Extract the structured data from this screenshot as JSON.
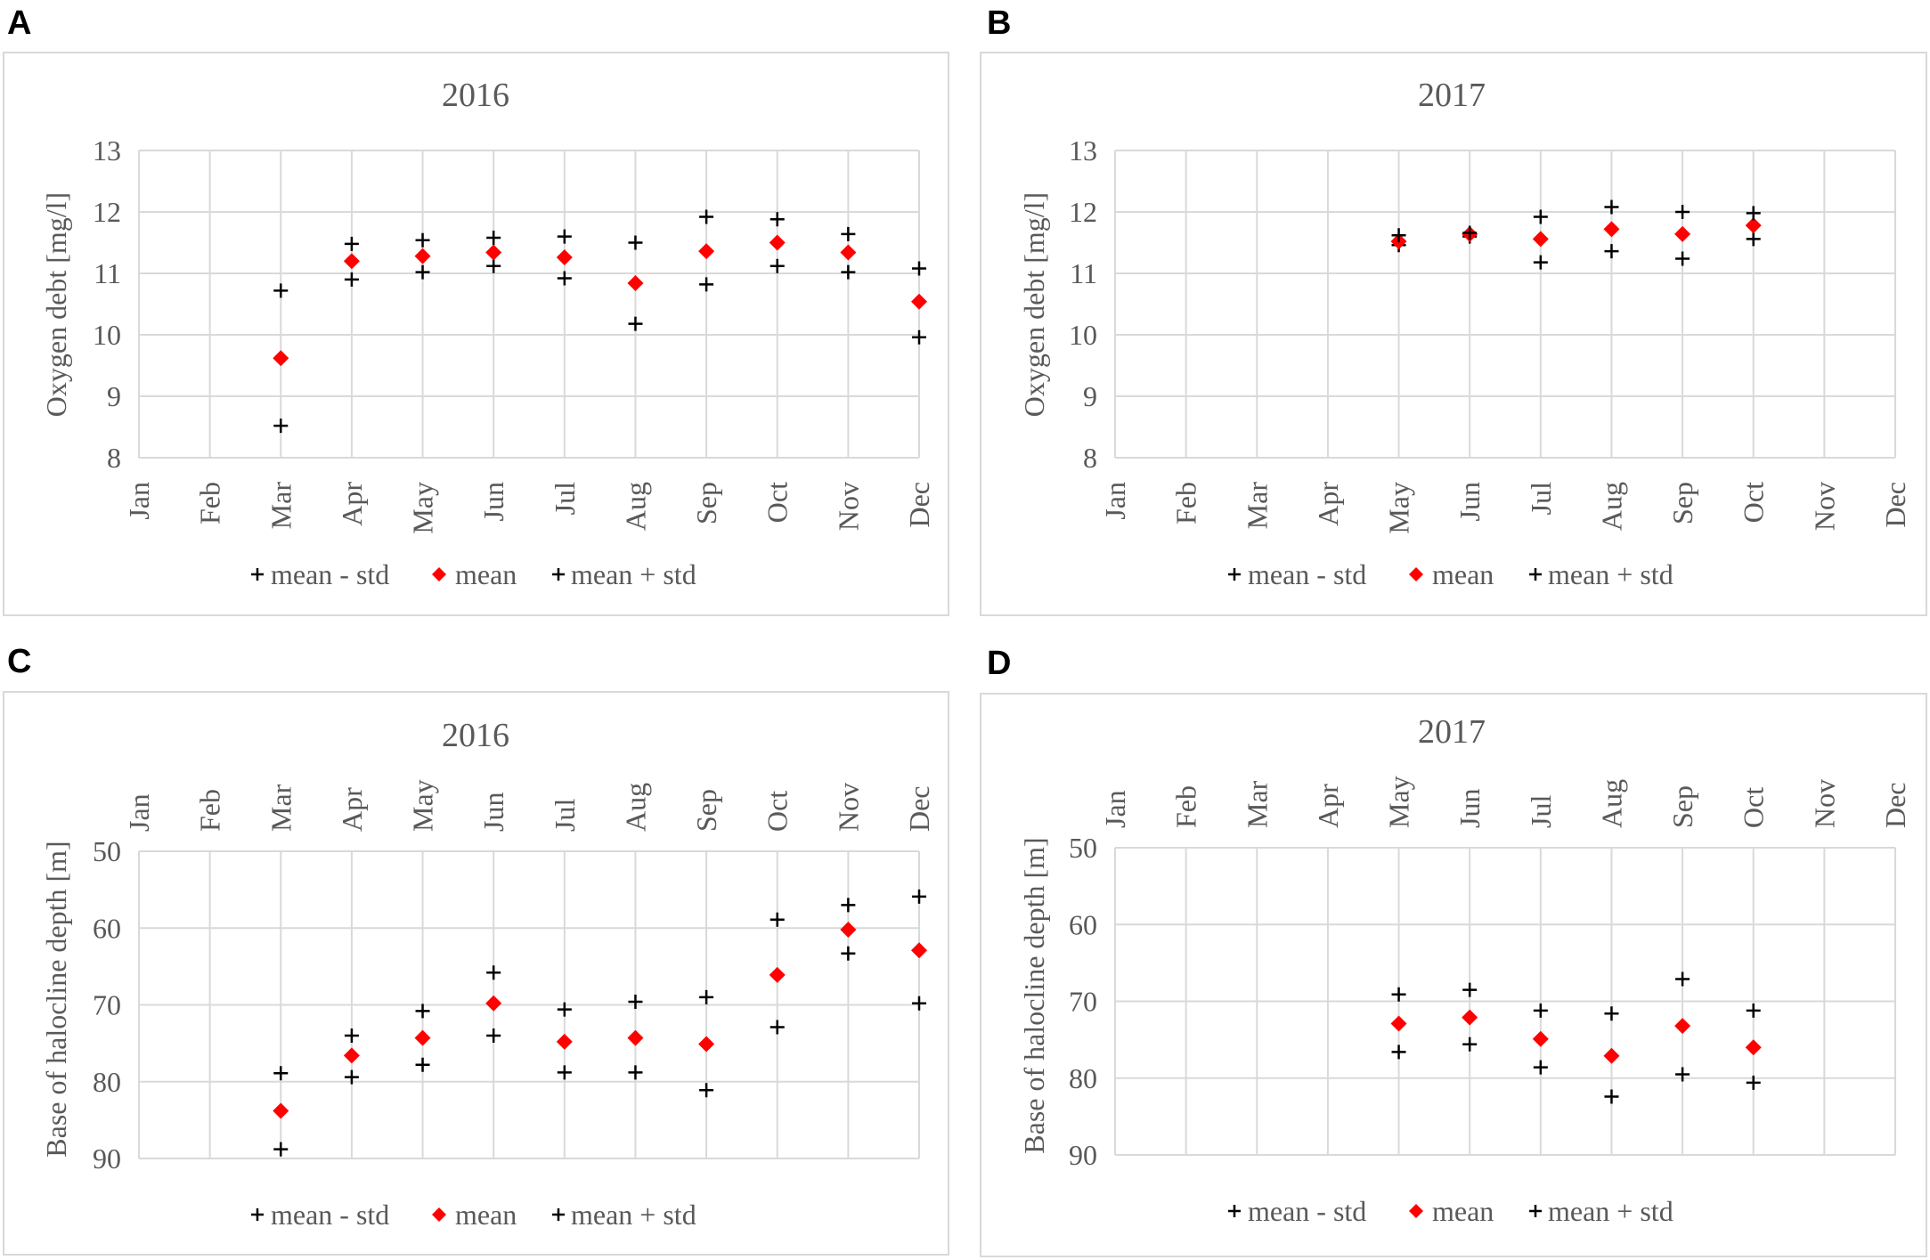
{
  "colors": {
    "mean": "#ff0000",
    "std": "#000000",
    "grid": "#d9d9d9",
    "text": "#595959"
  },
  "chart_data": [
    {
      "panel": "A",
      "type": "scatter",
      "title": "2016",
      "ylabel": "Oxygen debt [mg/l]",
      "xlabel": "",
      "categories": [
        "Jan",
        "Feb",
        "Mar",
        "Apr",
        "May",
        "Jun",
        "Jul",
        "Aug",
        "Sep",
        "Oct",
        "Nov",
        "Dec"
      ],
      "ylim": [
        8,
        13
      ],
      "yticks": [
        8,
        9,
        10,
        11,
        12,
        13
      ],
      "reversed": false,
      "month_axis": "bottom",
      "legend_labels": [
        "mean - std",
        "mean",
        "mean + std"
      ],
      "series": [
        {
          "name": "mean - std",
          "marker": "plus",
          "values": [
            null,
            null,
            8.52,
            10.9,
            11.02,
            11.12,
            10.92,
            10.18,
            10.82,
            11.12,
            11.02,
            9.96
          ]
        },
        {
          "name": "mean",
          "marker": "diamond",
          "values": [
            null,
            null,
            9.62,
            11.2,
            11.28,
            11.34,
            11.26,
            10.84,
            11.36,
            11.5,
            11.34,
            10.54
          ]
        },
        {
          "name": "mean + std",
          "marker": "plus",
          "values": [
            null,
            null,
            10.72,
            11.48,
            11.54,
            11.58,
            11.6,
            11.5,
            11.92,
            11.88,
            11.64,
            11.08
          ]
        }
      ]
    },
    {
      "panel": "B",
      "type": "scatter",
      "title": "2017",
      "ylabel": "Oxygen debt [mg/l]",
      "xlabel": "",
      "categories": [
        "Jan",
        "Feb",
        "Mar",
        "Apr",
        "May",
        "Jun",
        "Jul",
        "Aug",
        "Sep",
        "Oct",
        "Nov",
        "Dec"
      ],
      "ylim": [
        8,
        13
      ],
      "yticks": [
        8,
        9,
        10,
        11,
        12,
        13
      ],
      "reversed": false,
      "month_axis": "bottom",
      "legend_labels": [
        "mean - std",
        "mean",
        "mean + std"
      ],
      "series": [
        {
          "name": "mean - std",
          "marker": "plus",
          "values": [
            null,
            null,
            null,
            null,
            11.46,
            11.6,
            11.18,
            11.36,
            11.24,
            11.56,
            null,
            null
          ]
        },
        {
          "name": "mean",
          "marker": "diamond",
          "values": [
            null,
            null,
            null,
            null,
            11.52,
            11.64,
            11.56,
            11.72,
            11.64,
            11.78,
            null,
            null
          ]
        },
        {
          "name": "mean + std",
          "marker": "plus",
          "values": [
            null,
            null,
            null,
            null,
            11.62,
            11.66,
            11.92,
            12.08,
            12.0,
            11.98,
            null,
            null
          ]
        }
      ]
    },
    {
      "panel": "C",
      "type": "scatter",
      "title": "2016",
      "ylabel": "Base of halocline depth [m]",
      "xlabel": "",
      "categories": [
        "Jan",
        "Feb",
        "Mar",
        "Apr",
        "May",
        "Jun",
        "Jul",
        "Aug",
        "Sep",
        "Oct",
        "Nov",
        "Dec"
      ],
      "ylim": [
        50,
        90
      ],
      "yticks": [
        50,
        60,
        70,
        80,
        90
      ],
      "reversed": true,
      "month_axis": "top",
      "legend_labels": [
        "mean - std",
        "mean",
        "mean + std"
      ],
      "series": [
        {
          "name": "mean - std",
          "marker": "plus",
          "values": [
            null,
            null,
            78.9,
            74.0,
            70.8,
            65.8,
            70.6,
            69.6,
            69.0,
            58.9,
            57.0,
            55.9
          ]
        },
        {
          "name": "mean",
          "marker": "diamond",
          "values": [
            null,
            null,
            83.8,
            76.6,
            74.3,
            69.8,
            74.8,
            74.3,
            75.1,
            66.1,
            60.2,
            62.9
          ]
        },
        {
          "name": "mean + std",
          "marker": "plus",
          "values": [
            null,
            null,
            88.8,
            79.4,
            77.8,
            74.0,
            78.8,
            78.8,
            81.1,
            72.9,
            63.3,
            69.8
          ]
        }
      ]
    },
    {
      "panel": "D",
      "type": "scatter",
      "title": "2017",
      "ylabel": "Base of halocline depth [m]",
      "xlabel": "",
      "categories": [
        "Jan",
        "Feb",
        "Mar",
        "Apr",
        "May",
        "Jun",
        "Jul",
        "Aug",
        "Sep",
        "Oct",
        "Nov",
        "Dec"
      ],
      "ylim": [
        50,
        90
      ],
      "yticks": [
        50,
        60,
        70,
        80,
        90
      ],
      "reversed": true,
      "month_axis": "top",
      "legend_labels": [
        "mean - std",
        "mean",
        "mean + std"
      ],
      "series": [
        {
          "name": "mean - std",
          "marker": "plus",
          "values": [
            null,
            null,
            null,
            null,
            69.1,
            68.5,
            71.2,
            71.6,
            67.1,
            71.2,
            null,
            null
          ]
        },
        {
          "name": "mean",
          "marker": "diamond",
          "values": [
            null,
            null,
            null,
            null,
            72.9,
            72.1,
            74.9,
            77.1,
            73.2,
            76.0,
            null,
            null
          ]
        },
        {
          "name": "mean + std",
          "marker": "plus",
          "values": [
            null,
            null,
            null,
            null,
            76.6,
            75.6,
            78.6,
            82.4,
            79.5,
            80.6,
            null,
            null
          ]
        }
      ]
    }
  ]
}
